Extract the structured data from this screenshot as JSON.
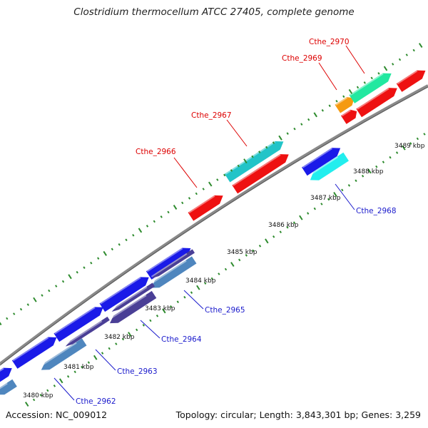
{
  "title": "Clostridium thermocellum ATCC 27405, complete genome",
  "footer": {
    "accession": "Accession: NC_009012",
    "topology": "Topology: circular; Length: 3,843,301 bp; Genes: 3,259"
  },
  "scale_unit": "kbp",
  "ticks_kbp": [
    3480,
    3481,
    3482,
    3483,
    3484,
    3485,
    3486,
    3487,
    3488,
    3489
  ],
  "colors": {
    "backbone": "#8a8a8a",
    "tick": "#2e8b2e",
    "label_forward": "#dd0000",
    "label_reverse": "#1a1acc",
    "red": "#ee1111",
    "blue": "#1a1ae8",
    "teal": "#22c4c8",
    "cyan": "#22eeee",
    "mint": "#22e8a0",
    "orange": "#f59a10",
    "steel": "#4f86be",
    "indigo": "#4a3f96"
  },
  "gene_labels": {
    "forward": [
      "Cthe_2966",
      "Cthe_2967",
      "Cthe_2969",
      "Cthe_2970"
    ],
    "reverse": [
      "Cthe_2962",
      "Cthe_2963",
      "Cthe_2964",
      "Cthe_2965",
      "Cthe_2968"
    ]
  }
}
